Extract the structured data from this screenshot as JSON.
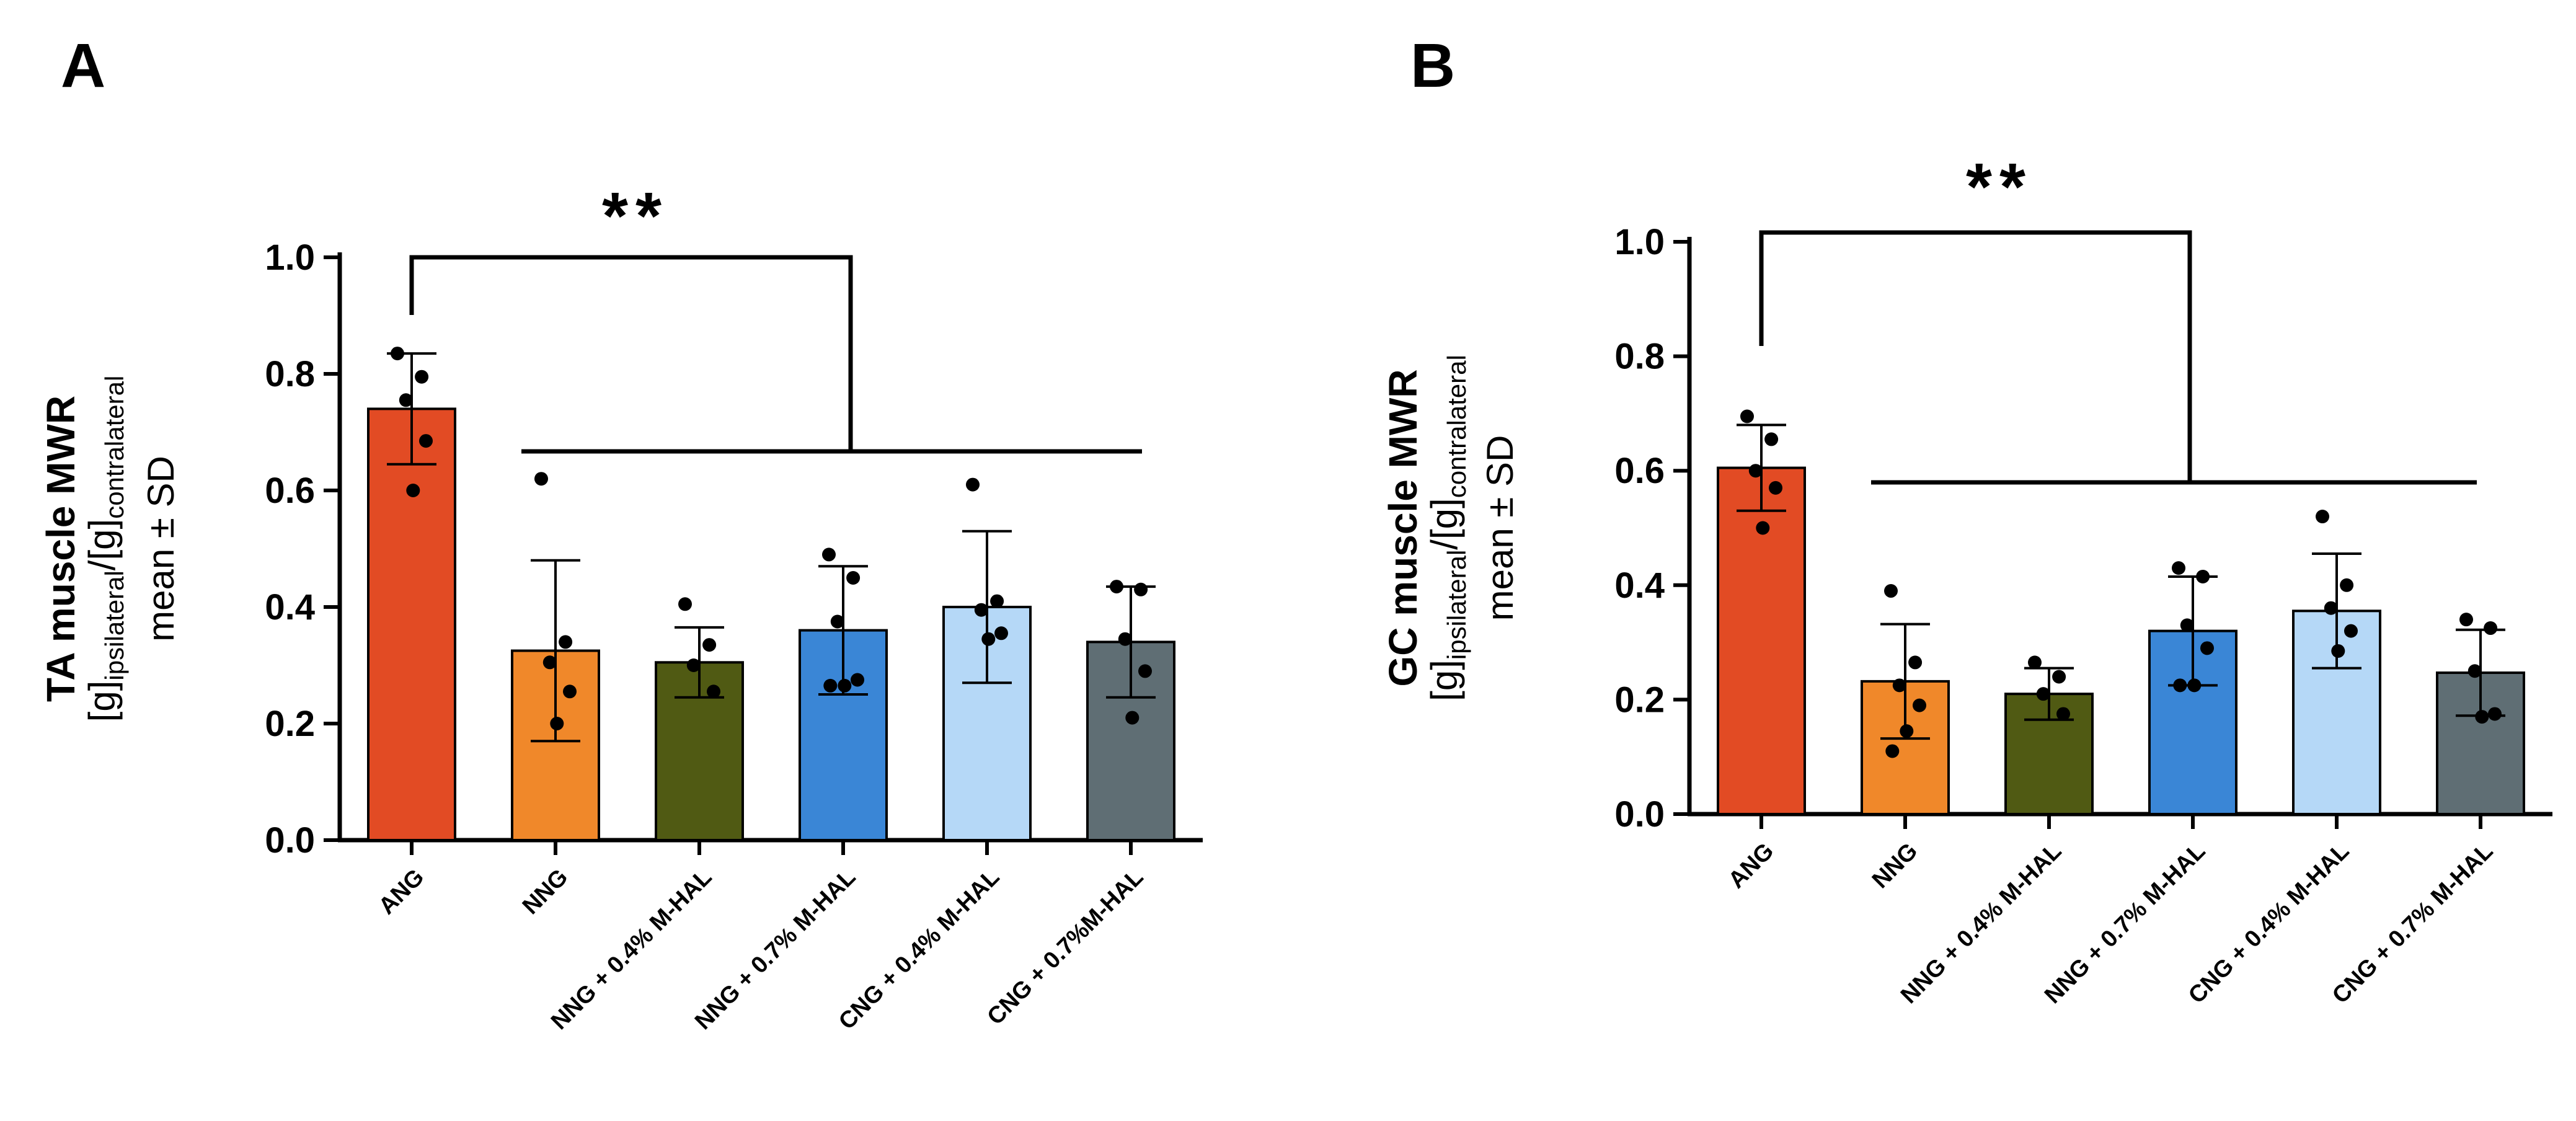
{
  "chart_data": [
    {
      "type": "bar",
      "panel_label": "A",
      "ylabel": {
        "title": "TA muscle MWR",
        "unit_open": "[g]",
        "unit_ipsi": "ipsilateral",
        "unit_sep": "/[g]",
        "unit_contra": "contralateral",
        "stat": "mean ± SD"
      },
      "ylim": [
        0,
        1.0
      ],
      "yticks": [
        "0.0",
        "0.2",
        "0.4",
        "0.6",
        "0.8",
        "1.0"
      ],
      "categories": [
        "ANG",
        "NNG",
        "NNG + 0.4% M-HAL",
        "NNG + 0.7% M-HAL",
        "CNG + 0.4% M-HAL",
        "CNG + 0.7%M-HAL"
      ],
      "values": [
        0.74,
        0.325,
        0.305,
        0.36,
        0.4,
        0.34
      ],
      "sd": [
        0.095,
        0.155,
        0.06,
        0.11,
        0.13,
        0.095
      ],
      "points": [
        [
          0.835,
          0.795,
          0.755,
          0.685,
          0.6
        ],
        [
          0.62,
          0.34,
          0.305,
          0.255,
          0.2
        ],
        [
          0.405,
          0.335,
          0.3,
          0.255
        ],
        [
          0.49,
          0.45,
          0.375,
          0.275,
          0.265,
          0.265
        ],
        [
          0.61,
          0.41,
          0.395,
          0.355,
          0.345
        ],
        [
          0.435,
          0.43,
          0.345,
          0.29,
          0.21
        ]
      ],
      "bar_colors": [
        "#e24b24",
        "#f0882a",
        "#505a13",
        "#3a86d6",
        "#b5d8f7",
        "#5f6e74"
      ],
      "significance": "**"
    },
    {
      "type": "bar",
      "panel_label": "B",
      "ylabel": {
        "title": "GC muscle MWR",
        "unit_open": "[g]",
        "unit_ipsi": "ipsilateral",
        "unit_sep": "/[g]",
        "unit_contra": "contralateral",
        "stat": "mean ± SD"
      },
      "ylim": [
        0,
        1.0
      ],
      "yticks": [
        "0.0",
        "0.2",
        "0.4",
        "0.6",
        "0.8",
        "1.0"
      ],
      "categories": [
        "ANG",
        "NNG",
        "NNG + 0.4% M-HAL",
        "NNG + 0.7% M-HAL",
        "CNG + 0.4% M-HAL",
        "CNG + 0.7% M-HAL"
      ],
      "values": [
        0.605,
        0.232,
        0.21,
        0.32,
        0.355,
        0.247
      ],
      "sd": [
        0.075,
        0.1,
        0.045,
        0.095,
        0.1,
        0.075
      ],
      "points": [
        [
          0.695,
          0.655,
          0.6,
          0.57,
          0.5
        ],
        [
          0.39,
          0.265,
          0.225,
          0.19,
          0.145,
          0.11
        ],
        [
          0.265,
          0.24,
          0.21,
          0.175
        ],
        [
          0.43,
          0.415,
          0.33,
          0.29,
          0.225,
          0.225
        ],
        [
          0.52,
          0.4,
          0.36,
          0.32,
          0.285
        ],
        [
          0.34,
          0.325,
          0.25,
          0.175,
          0.17
        ]
      ],
      "bar_colors": [
        "#e24b24",
        "#f0882a",
        "#505a13",
        "#3a86d6",
        "#b5d8f7",
        "#5f6e74"
      ],
      "significance": "**"
    }
  ]
}
